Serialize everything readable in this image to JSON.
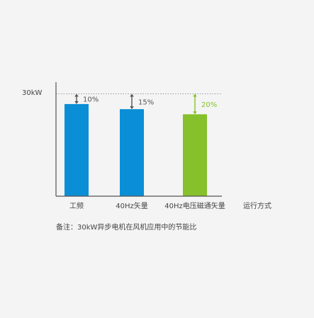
{
  "colors": {
    "background": "#f4f4f4",
    "axis": "#555555",
    "text": "#444444",
    "blue": "#0a8fd6",
    "green": "#86c02a",
    "annotation_dark": "#555555"
  },
  "chart_data": {
    "type": "bar",
    "title": "",
    "xlabel": "运行方式",
    "ylabel": "",
    "y_reference_label": "30kW",
    "y_reference_value": 30,
    "ylim": [
      0,
      33
    ],
    "grid": false,
    "categories": [
      "工频",
      "40Hz矢量",
      "40Hz电压磁通矢量"
    ],
    "values": [
      27,
      25.5,
      24
    ],
    "savings_annotations": [
      {
        "text": "10%",
        "color": "annotation_dark"
      },
      {
        "text": "15%",
        "color": "annotation_dark"
      },
      {
        "text": "20%",
        "color": "green"
      }
    ],
    "bar_colors": [
      "blue",
      "blue",
      "green"
    ],
    "note": "备注：30kW异步电机在风机应用中的节能比"
  }
}
